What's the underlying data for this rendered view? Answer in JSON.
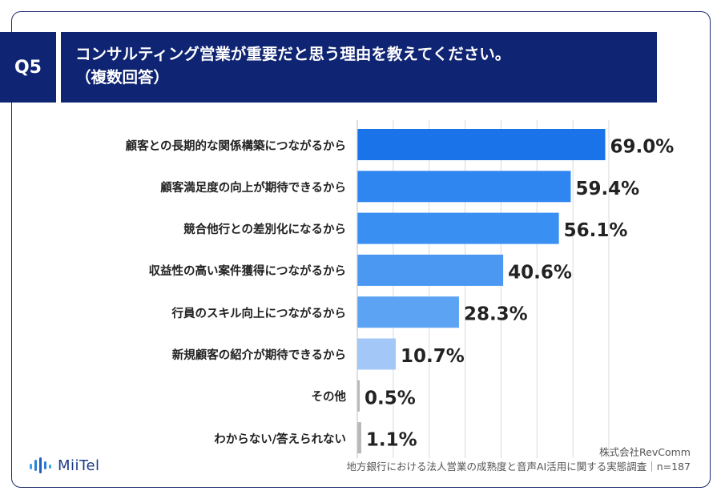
{
  "header": {
    "badge": "Q5",
    "question_line1": "コンサルティング営業が重要だと思う理由を教えてください。",
    "question_line2": "（複数回答）"
  },
  "chart_data": {
    "type": "bar",
    "orientation": "horizontal",
    "categories": [
      "顧客との長期的な関係構築につながるから",
      "顧客満足度の向上が期待できるから",
      "競合他行との差別化になるから",
      "収益性の高い案件獲得につながるから",
      "行員のスキル向上につながるから",
      "新規顧客の紹介が期待できるから",
      "その他",
      "わからない/答えられない"
    ],
    "values": [
      69.0,
      59.4,
      56.1,
      40.6,
      28.3,
      10.7,
      0.5,
      1.1
    ],
    "value_labels": [
      "69.0%",
      "59.4%",
      "56.1%",
      "40.6%",
      "28.3%",
      "10.7%",
      "0.5%",
      "1.1%"
    ],
    "xlim": [
      0,
      70
    ],
    "grid": true,
    "colors": [
      "#1a73e8",
      "#2f86f0",
      "#3a8ff2",
      "#4a98f2",
      "#5ca3f3",
      "#a3c8f7",
      "#b8b8b8",
      "#b8b8b8"
    ]
  },
  "footer": {
    "company": "株式会社RevComm",
    "survey": "地方銀行における法人営業の成熟度と音声AI活用に関する実態調査｜n=187"
  },
  "logo": {
    "text": "MiiTel",
    "icon": "sound-wave-icon",
    "color": "#1d3a8a"
  }
}
